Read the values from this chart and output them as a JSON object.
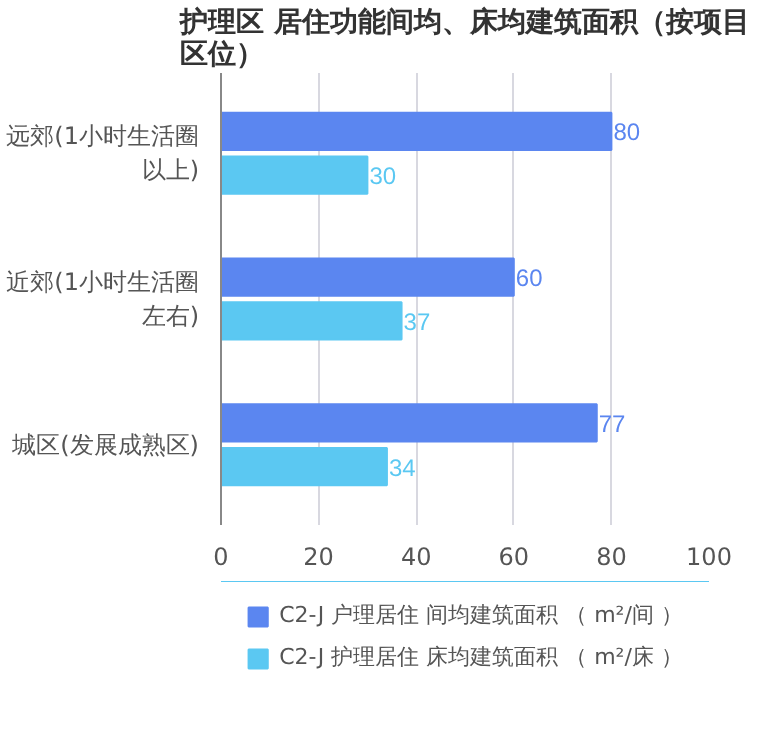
{
  "chart_data": {
    "type": "bar",
    "orientation": "horizontal",
    "title": "护理区 居住功能间均、床均建筑面积（按项目区位）",
    "categories": [
      "远郊(1小时生活圈以上)",
      "近郊(1小时生活圈左右)",
      "城区(发展成熟区)"
    ],
    "series": [
      {
        "name": "C2-J 户理居住 间均建筑面积 （ m²/间 ）",
        "color": "#5b86f0",
        "values": [
          80,
          60,
          77
        ]
      },
      {
        "name": "C2-J 护理居住 床均建筑面积 （ m²/床 ）",
        "color": "#5bc8f2",
        "values": [
          30,
          37,
          34
        ]
      }
    ],
    "xlim": [
      0,
      100
    ],
    "xticks": [
      0,
      20,
      40,
      60,
      80,
      100
    ],
    "grid": "x",
    "legend": "bottom",
    "data_labels": true
  }
}
